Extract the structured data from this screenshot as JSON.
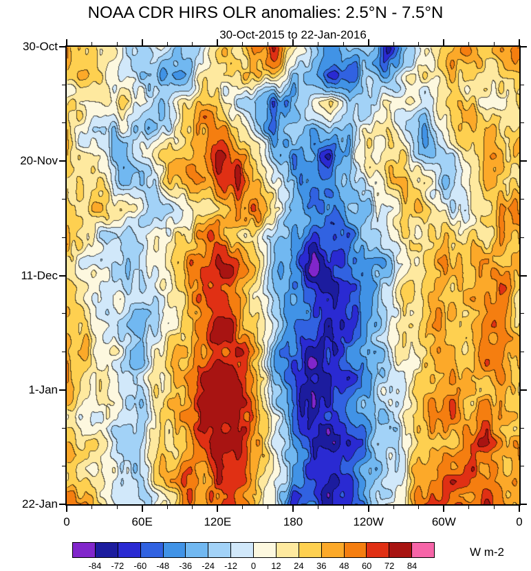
{
  "chart_data": {
    "type": "heatmap",
    "title": "NOAA CDR HIRS OLR anomalies: 2.5°N - 7.5°N",
    "subtitle": "30-Oct-2015 to 22-Jan-2016",
    "units": "W m-2",
    "contour_interval": 12,
    "x_axis": {
      "label_type": "longitude",
      "ticks": [
        "0",
        "60E",
        "120E",
        "180",
        "120W",
        "60W",
        "0"
      ],
      "positions_deg": [
        0,
        60,
        120,
        180,
        240,
        300,
        360
      ],
      "minor_step_deg": 20,
      "range_deg": [
        0,
        360
      ]
    },
    "y_axis": {
      "label_type": "date",
      "ticks": [
        "30-Oct",
        "20-Nov",
        "11-Dec",
        "1-Jan",
        "22-Jan"
      ],
      "positions_day": [
        0,
        21,
        42,
        63,
        84
      ],
      "minor_step_day": 7,
      "range_days": [
        0,
        84
      ],
      "direction": "top-to-bottom"
    },
    "colorbar": {
      "levels": [
        -84,
        -72,
        -60,
        -48,
        -36,
        -24,
        -12,
        0,
        12,
        24,
        36,
        48,
        60,
        72,
        84
      ],
      "colors": [
        "#8126CB",
        "#1C1C9E",
        "#2A2AD2",
        "#3162E1",
        "#4193E6",
        "#71B8F1",
        "#A2D2F7",
        "#D1E8FA",
        "#FDF8DF",
        "#FEE99F",
        "#FED050",
        "#FCA929",
        "#F57E10",
        "#E03014",
        "#A81412",
        "#F665A8"
      ]
    },
    "grid": {
      "comment_units": "W m-2 anomaly, coarse visual estimate",
      "lon_start_deg": 0,
      "lon_step_deg": 15,
      "day_start": 0,
      "day_step": 5,
      "values": [
        [
          35,
          20,
          5,
          -10,
          -15,
          5,
          -25,
          -10,
          15,
          30,
          55,
          65,
          30,
          -35,
          -50,
          -25,
          0,
          -65,
          -25,
          10,
          30,
          40,
          35,
          40,
          35
        ],
        [
          25,
          30,
          10,
          -5,
          -20,
          -35,
          -30,
          5,
          25,
          20,
          40,
          30,
          -10,
          -30,
          -55,
          -65,
          -20,
          -40,
          10,
          25,
          30,
          25,
          40,
          30,
          25
        ],
        [
          20,
          10,
          25,
          35,
          10,
          -15,
          20,
          35,
          30,
          -10,
          -35,
          -50,
          -30,
          -15,
          20,
          -40,
          -20,
          15,
          30,
          -10,
          15,
          35,
          20,
          15,
          20
        ],
        [
          15,
          -5,
          -20,
          10,
          -25,
          -10,
          15,
          40,
          50,
          35,
          -20,
          -40,
          -25,
          -35,
          -10,
          -30,
          10,
          25,
          -15,
          -30,
          10,
          25,
          35,
          25,
          15
        ],
        [
          25,
          15,
          -10,
          -20,
          5,
          20,
          35,
          55,
          70,
          60,
          30,
          -25,
          -50,
          -40,
          -55,
          -20,
          15,
          30,
          20,
          -15,
          -25,
          15,
          30,
          40,
          25
        ],
        [
          30,
          20,
          10,
          -15,
          -20,
          15,
          30,
          45,
          60,
          70,
          45,
          10,
          -35,
          -60,
          -45,
          -30,
          -10,
          20,
          35,
          10,
          -20,
          10,
          25,
          30,
          30
        ],
        [
          35,
          25,
          15,
          5,
          -15,
          -25,
          10,
          30,
          40,
          50,
          55,
          25,
          -20,
          -45,
          -55,
          -40,
          -20,
          5,
          25,
          30,
          15,
          -10,
          20,
          35,
          35
        ],
        [
          30,
          15,
          -5,
          -20,
          -10,
          10,
          25,
          40,
          55,
          45,
          20,
          -15,
          -40,
          -65,
          -70,
          -45,
          -25,
          -10,
          15,
          30,
          25,
          15,
          30,
          40,
          30
        ],
        [
          25,
          10,
          -15,
          -25,
          -15,
          5,
          30,
          50,
          60,
          55,
          25,
          -20,
          -55,
          -75,
          -60,
          -50,
          -30,
          -15,
          10,
          25,
          35,
          20,
          25,
          35,
          25
        ],
        [
          35,
          20,
          5,
          -15,
          -20,
          10,
          35,
          55,
          65,
          50,
          15,
          -25,
          -45,
          -60,
          -70,
          -55,
          -35,
          -10,
          20,
          40,
          30,
          25,
          35,
          45,
          35
        ],
        [
          40,
          25,
          10,
          -10,
          -25,
          -5,
          30,
          55,
          70,
          60,
          30,
          -10,
          -40,
          -55,
          -65,
          -60,
          -40,
          -20,
          5,
          30,
          40,
          30,
          40,
          45,
          40
        ],
        [
          45,
          30,
          15,
          -5,
          -20,
          10,
          40,
          60,
          75,
          65,
          35,
          -15,
          -50,
          -70,
          -75,
          -55,
          -35,
          -15,
          10,
          35,
          45,
          35,
          45,
          50,
          45
        ],
        [
          40,
          25,
          10,
          -15,
          -10,
          15,
          45,
          65,
          80,
          70,
          40,
          -20,
          -60,
          -80,
          -70,
          -60,
          -40,
          -25,
          5,
          30,
          40,
          45,
          50,
          45,
          40
        ],
        [
          35,
          20,
          5,
          -20,
          -15,
          20,
          50,
          70,
          84,
          75,
          45,
          -10,
          -65,
          -84,
          -75,
          -55,
          -30,
          -10,
          15,
          35,
          45,
          40,
          45,
          40,
          35
        ],
        [
          30,
          15,
          -5,
          -15,
          -20,
          15,
          45,
          65,
          80,
          70,
          50,
          5,
          -50,
          -75,
          -80,
          -65,
          -45,
          -20,
          10,
          30,
          40,
          45,
          50,
          45,
          30
        ],
        [
          35,
          25,
          10,
          -10,
          -15,
          20,
          40,
          60,
          75,
          65,
          45,
          10,
          -40,
          -65,
          -70,
          -60,
          -40,
          -15,
          15,
          35,
          50,
          45,
          55,
          50,
          35
        ],
        [
          40,
          30,
          15,
          -5,
          -10,
          15,
          35,
          55,
          70,
          60,
          40,
          0,
          -45,
          -60,
          -65,
          -55,
          -35,
          -10,
          20,
          40,
          55,
          60,
          65,
          55,
          40
        ],
        [
          45,
          35,
          20,
          0,
          -15,
          10,
          30,
          50,
          65,
          55,
          35,
          -10,
          -50,
          -55,
          -60,
          -50,
          -30,
          -5,
          25,
          45,
          60,
          70,
          60,
          50,
          45
        ]
      ]
    }
  }
}
